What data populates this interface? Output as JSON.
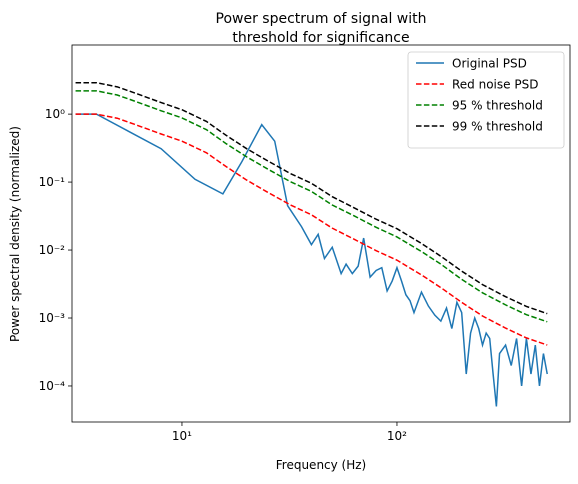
{
  "chart_data": {
    "type": "line",
    "title": [
      "Power spectrum of signal with",
      "threshold for significance"
    ],
    "xlabel": "Frequency (Hz)",
    "ylabel": "Power spectral density (normalized)",
    "xscale": "log",
    "yscale": "log",
    "xlim": [
      3.08,
      638
    ],
    "ylim": [
      2.95e-05,
      10.4
    ],
    "xticks": [
      {
        "value": 10,
        "label": "10¹"
      },
      {
        "value": 100,
        "label": "10²"
      }
    ],
    "yticks": [
      {
        "value": 0.0001,
        "label": "10⁻⁴"
      },
      {
        "value": 0.001,
        "label": "10⁻³"
      },
      {
        "value": 0.01,
        "label": "10⁻²"
      },
      {
        "value": 0.1,
        "label": "10⁻¹"
      },
      {
        "value": 1,
        "label": "10⁰"
      }
    ],
    "legend": "upper right",
    "series": [
      {
        "name": "Original PSD",
        "color": "#1f77b4",
        "linestyle": "solid",
        "x": [
          3.2,
          4,
          8,
          11.5,
          15.5,
          19,
          23.5,
          27,
          31,
          36,
          40,
          43,
          46,
          50,
          55,
          58,
          62,
          66,
          70,
          75,
          80,
          85,
          90,
          95,
          100,
          105,
          110,
          115,
          120,
          130,
          140,
          150,
          160,
          170,
          180,
          190,
          200,
          210,
          220,
          230,
          240,
          250,
          260,
          270,
          280,
          290,
          300,
          320,
          340,
          360,
          380,
          400,
          420,
          440,
          460,
          480,
          500
        ],
        "values": [
          1.0,
          1.0,
          0.31,
          0.11,
          0.067,
          0.2,
          0.7,
          0.4,
          0.045,
          0.022,
          0.012,
          0.017,
          0.0075,
          0.011,
          0.0045,
          0.0062,
          0.0045,
          0.0058,
          0.015,
          0.004,
          0.005,
          0.0055,
          0.0025,
          0.0035,
          0.0055,
          0.0035,
          0.0022,
          0.0018,
          0.0012,
          0.0024,
          0.0015,
          0.0011,
          0.0009,
          0.0014,
          0.0007,
          0.0017,
          0.0012,
          0.00015,
          0.0006,
          0.001,
          0.0007,
          0.0004,
          0.0006,
          0.0005,
          0.00015,
          5e-05,
          0.0003,
          0.0004,
          0.0002,
          0.0005,
          0.0001,
          0.0005,
          0.00015,
          0.0004,
          0.0001,
          0.0003,
          0.00015
        ]
      },
      {
        "name": "Red noise PSD",
        "color": "#ff0000",
        "linestyle": "dashed",
        "x": [
          3.2,
          4,
          5,
          6,
          8,
          10,
          13,
          16,
          20,
          25,
          32,
          40,
          50,
          63,
          80,
          100,
          130,
          160,
          200,
          250,
          320,
          400,
          500
        ],
        "values": [
          1.0,
          1.0,
          0.87,
          0.71,
          0.51,
          0.4,
          0.27,
          0.17,
          0.107,
          0.071,
          0.046,
          0.033,
          0.021,
          0.0145,
          0.0098,
          0.0071,
          0.0043,
          0.0028,
          0.0017,
          0.00107,
          0.00071,
          0.00051,
          0.0004
        ]
      },
      {
        "name": "95 % threshold",
        "color": "#008000",
        "linestyle": "dashed",
        "x": [
          3.2,
          4,
          5,
          6,
          8,
          10,
          13,
          16,
          20,
          25,
          32,
          40,
          50,
          63,
          80,
          100,
          130,
          160,
          200,
          250,
          320,
          400,
          500
        ],
        "values": [
          2.2,
          2.2,
          1.91,
          1.56,
          1.12,
          0.88,
          0.59,
          0.37,
          0.235,
          0.156,
          0.101,
          0.073,
          0.046,
          0.032,
          0.0216,
          0.0156,
          0.0095,
          0.0062,
          0.0037,
          0.00235,
          0.00156,
          0.00112,
          0.00088
        ]
      },
      {
        "name": "99 % threshold",
        "color": "#000000",
        "linestyle": "dashed",
        "x": [
          3.2,
          4,
          5,
          6,
          8,
          10,
          13,
          16,
          20,
          25,
          32,
          40,
          50,
          63,
          80,
          100,
          130,
          160,
          200,
          250,
          320,
          400,
          500
        ],
        "values": [
          2.9,
          2.9,
          2.52,
          2.06,
          1.48,
          1.16,
          0.78,
          0.49,
          0.31,
          0.206,
          0.133,
          0.096,
          0.061,
          0.042,
          0.0284,
          0.0206,
          0.0125,
          0.0081,
          0.0049,
          0.0031,
          0.00206,
          0.00148,
          0.00116
        ]
      }
    ]
  }
}
